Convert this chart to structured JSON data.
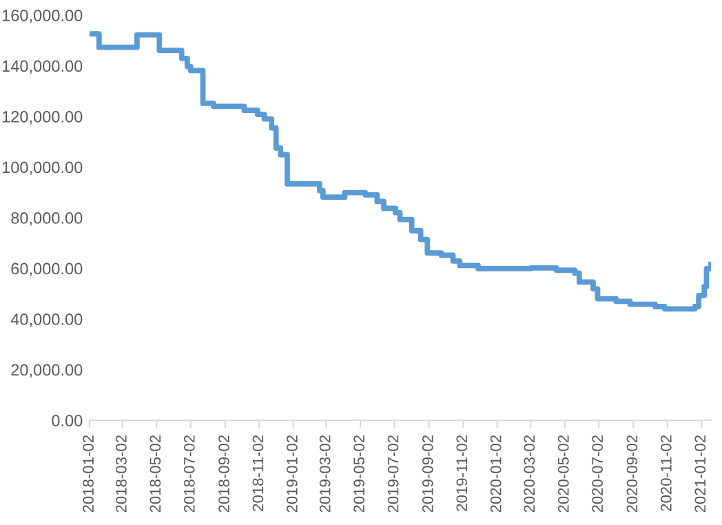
{
  "chart_data": {
    "type": "step",
    "color": "#5b9bd5",
    "grid": false,
    "legend": false,
    "marker": "none",
    "line_style": "solid",
    "x": [
      "2018-01-02",
      "2018-01-19",
      "2018-03-28",
      "2018-05-07",
      "2018-06-16",
      "2018-06-26",
      "2018-07-02",
      "2018-07-24",
      "2018-08-12",
      "2018-10-06",
      "2018-10-30",
      "2018-11-11",
      "2018-11-24",
      "2018-12-02",
      "2018-12-10",
      "2018-12-22",
      "2019-02-18",
      "2019-02-24",
      "2019-04-04",
      "2019-05-11",
      "2019-06-01",
      "2019-06-13",
      "2019-07-04",
      "2019-07-12",
      "2019-08-02",
      "2019-08-18",
      "2019-08-30",
      "2019-09-24",
      "2019-10-15",
      "2019-10-27",
      "2019-11-29",
      "2020-03-03",
      "2020-04-17",
      "2020-05-20",
      "2020-05-28",
      "2020-06-22",
      "2020-06-30",
      "2020-08-02",
      "2020-08-27",
      "2020-10-11",
      "2020-10-28",
      "2020-12-21",
      "2020-12-28",
      "2021-01-07",
      "2021-01-11",
      "2021-01-19"
    ],
    "values": [
      152600,
      147300,
      152200,
      146100,
      142900,
      139700,
      138100,
      125200,
      124000,
      122400,
      120800,
      119000,
      115500,
      107500,
      104900,
      93400,
      90700,
      88100,
      89900,
      89000,
      86400,
      83700,
      82000,
      79300,
      74900,
      71400,
      66100,
      65200,
      62900,
      61100,
      59900,
      60200,
      59300,
      58100,
      54600,
      51900,
      48000,
      47000,
      45800,
      44900,
      44000,
      44900,
      49300,
      52800,
      59900,
      61600
    ],
    "xlim": [
      "2018-01-02",
      "2021-01-19"
    ],
    "xticks": [
      "2018-01-02",
      "2018-03-02",
      "2018-05-02",
      "2018-07-02",
      "2018-09-02",
      "2018-11-02",
      "2019-01-02",
      "2019-03-02",
      "2019-05-02",
      "2019-07-02",
      "2019-09-02",
      "2019-11-02",
      "2020-01-02",
      "2020-03-02",
      "2020-05-02",
      "2020-07-02",
      "2020-09-02",
      "2020-11-02",
      "2021-01-02"
    ],
    "ylim": [
      0,
      160000
    ],
    "yticks": [
      {
        "value": 0,
        "label": "0.00"
      },
      {
        "value": 20000,
        "label": "20,000.00"
      },
      {
        "value": 40000,
        "label": "40,000.00"
      },
      {
        "value": 60000,
        "label": "60,000.00"
      },
      {
        "value": 80000,
        "label": "80,000.00"
      },
      {
        "value": 100000,
        "label": "100,000.00"
      },
      {
        "value": 120000,
        "label": "120,000.00"
      },
      {
        "value": 140000,
        "label": "140,000.00"
      },
      {
        "value": 160000,
        "label": "160,000.00"
      }
    ]
  }
}
